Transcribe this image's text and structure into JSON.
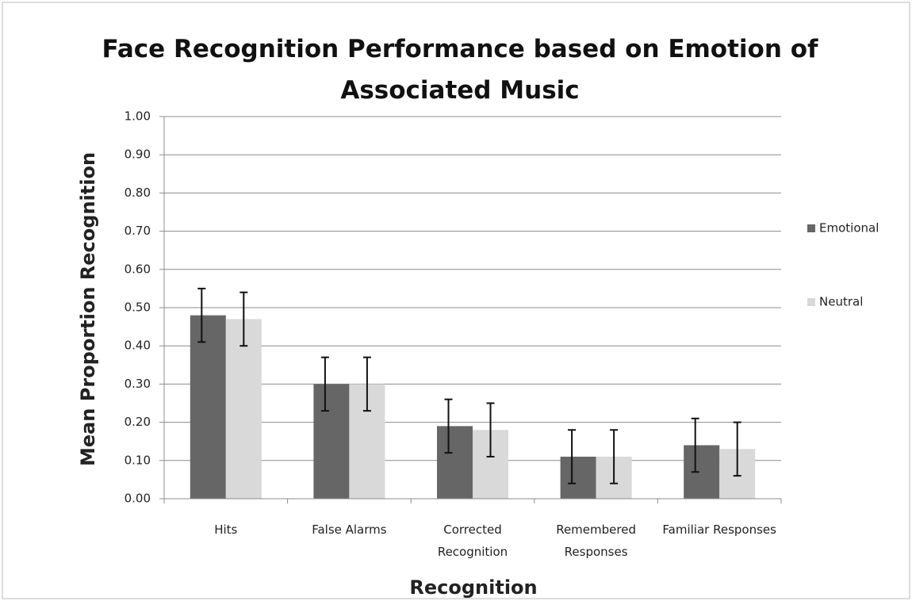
{
  "chart_data": {
    "type": "bar",
    "title": "Face Recognition Performance based on Emotion of Associated Music",
    "x_label": "Recognition",
    "y_label": "Mean Proportion Recognition",
    "categories": [
      "Hits",
      "False Alarms",
      "Corrected Recognition",
      "Remembered Responses",
      "Familiar Responses"
    ],
    "series": [
      {
        "name": "Emotional",
        "color": "#666666",
        "values": [
          0.48,
          0.3,
          0.19,
          0.11,
          0.14
        ],
        "errors": [
          0.07,
          0.07,
          0.07,
          0.07,
          0.07
        ]
      },
      {
        "name": "Neutral",
        "color": "#d9d9d9",
        "values": [
          0.47,
          0.3,
          0.18,
          0.11,
          0.13
        ],
        "errors": [
          0.07,
          0.07,
          0.07,
          0.07,
          0.07
        ]
      }
    ],
    "ylim": [
      0,
      1
    ],
    "yticks": [
      {
        "value": 0,
        "label": "0.00"
      },
      {
        "value": 0.1,
        "label": "0.10"
      },
      {
        "value": 0.2,
        "label": "0.20"
      },
      {
        "value": 0.3,
        "label": "0.30"
      },
      {
        "value": 0.4,
        "label": "0.40"
      },
      {
        "value": 0.5,
        "label": "0.50"
      },
      {
        "value": 0.6,
        "label": "0.60"
      },
      {
        "value": 0.7,
        "label": "0.70"
      },
      {
        "value": 0.8,
        "label": "0.80"
      },
      {
        "value": 0.9,
        "label": "0.90"
      },
      {
        "value": 1,
        "label": "1.00"
      }
    ],
    "grid": true,
    "legend": "right"
  }
}
